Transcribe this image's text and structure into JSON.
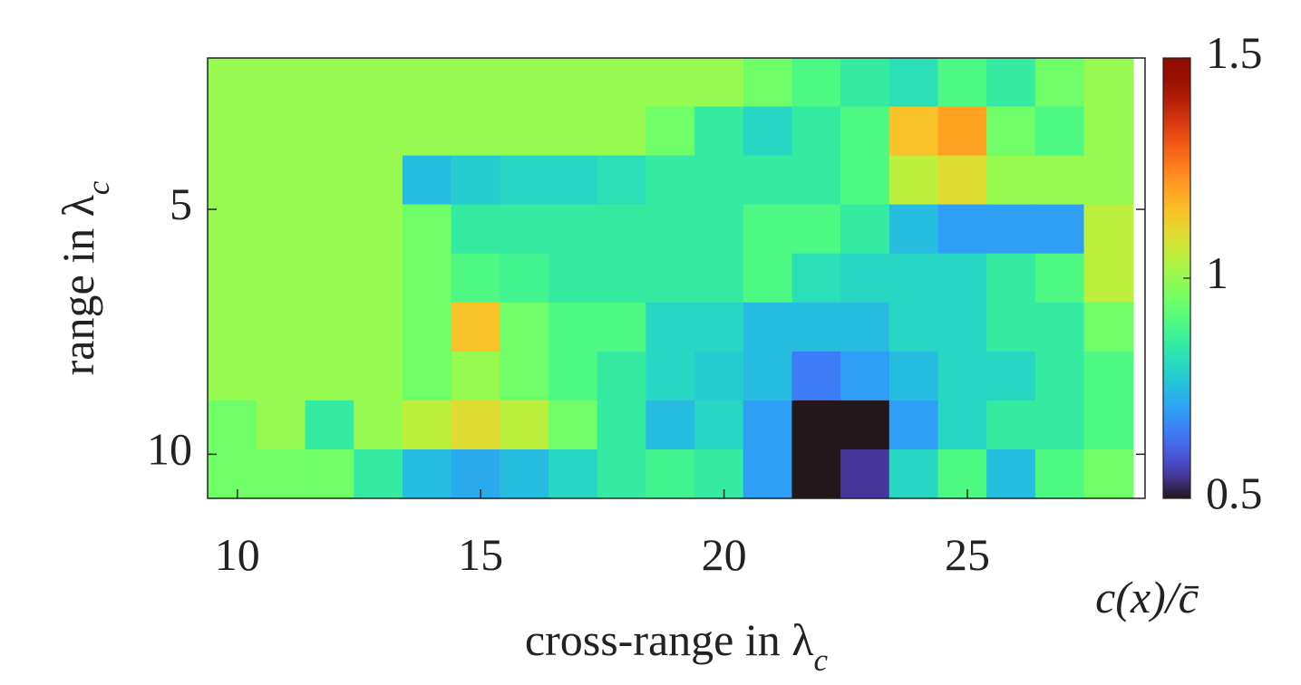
{
  "chart_data": {
    "type": "heatmap",
    "xlabel": "cross-range in λ_c",
    "ylabel": "range in λ_c",
    "colorbar_label": "c(x)/c̄",
    "colormap": "turbo",
    "xlim": [
      9.39,
      28.65
    ],
    "ylim": [
      1.91,
      10.9
    ],
    "y_reversed": true,
    "xticks": [
      10,
      15,
      20,
      25
    ],
    "yticks": [
      5,
      10
    ],
    "clim": [
      0.5,
      1.5
    ],
    "cticks": [
      0.5,
      1,
      1.5
    ],
    "x": [
      9.9,
      10.9,
      11.9,
      12.9,
      13.9,
      14.9,
      15.9,
      16.9,
      17.9,
      18.9,
      19.9,
      20.9,
      21.9,
      22.9,
      23.9,
      24.9,
      25.9,
      26.9,
      27.9
    ],
    "y": [
      2.4,
      3.4,
      4.4,
      5.4,
      6.4,
      7.4,
      8.4,
      9.4,
      10.4
    ],
    "z": [
      [
        1,
        1,
        1,
        1,
        1,
        1,
        1,
        1,
        1,
        1,
        1,
        0.95,
        0.9,
        0.85,
        0.82,
        0.9,
        0.85,
        0.95,
        1
      ],
      [
        1,
        1,
        1,
        1,
        1,
        1,
        1,
        1,
        1,
        0.95,
        0.85,
        0.8,
        0.85,
        0.9,
        1.15,
        1.2,
        0.95,
        0.9,
        1
      ],
      [
        1,
        1,
        1,
        1,
        0.75,
        0.78,
        0.8,
        0.8,
        0.82,
        0.85,
        0.85,
        0.85,
        0.85,
        0.9,
        1.05,
        1.1,
        1,
        1,
        1
      ],
      [
        1,
        1,
        1,
        1,
        0.95,
        0.85,
        0.85,
        0.85,
        0.85,
        0.85,
        0.85,
        0.9,
        0.9,
        0.85,
        0.75,
        0.7,
        0.7,
        0.7,
        1.05
      ],
      [
        1,
        1,
        1,
        1,
        0.95,
        0.9,
        0.88,
        0.85,
        0.85,
        0.85,
        0.85,
        0.9,
        0.82,
        0.8,
        0.8,
        0.8,
        0.85,
        0.9,
        1.05
      ],
      [
        1,
        1,
        1,
        1,
        0.95,
        1.15,
        0.95,
        0.9,
        0.9,
        0.8,
        0.8,
        0.75,
        0.75,
        0.75,
        0.8,
        0.8,
        0.85,
        0.85,
        0.95
      ],
      [
        1,
        1,
        1,
        1,
        0.95,
        1,
        0.95,
        0.9,
        0.85,
        0.8,
        0.78,
        0.75,
        0.65,
        0.7,
        0.75,
        0.8,
        0.8,
        0.85,
        0.9
      ],
      [
        0.95,
        1,
        0.85,
        1,
        1.05,
        1.1,
        1.05,
        0.95,
        0.85,
        0.75,
        0.8,
        0.7,
        0.5,
        0.5,
        0.7,
        0.8,
        0.85,
        0.85,
        0.9
      ],
      [
        0.95,
        0.95,
        0.95,
        0.85,
        0.75,
        0.72,
        0.75,
        0.8,
        0.85,
        0.88,
        0.85,
        0.7,
        0.5,
        0.55,
        0.8,
        0.9,
        0.75,
        0.9,
        0.95
      ]
    ]
  }
}
